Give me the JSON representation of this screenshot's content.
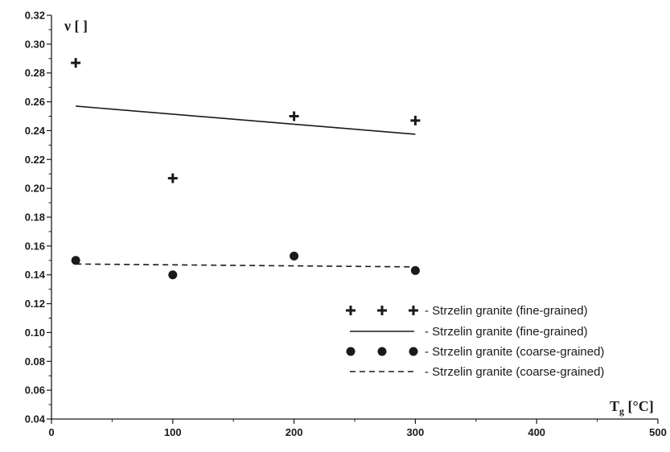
{
  "chart_data": {
    "type": "scatter",
    "xlabel": {
      "main": "T",
      "sub": "g",
      "unit": " [°C]"
    },
    "ylabel": {
      "main": "ν [ ]"
    },
    "xlim": [
      0,
      500
    ],
    "ylim": [
      0.04,
      0.32
    ],
    "x_ticks": [
      0,
      100,
      200,
      300,
      400,
      500
    ],
    "x_tick_labels": [
      "0",
      "100",
      "200",
      "300",
      "400",
      "500"
    ],
    "y_ticks": [
      0.04,
      0.06,
      0.08,
      0.1,
      0.12,
      0.14,
      0.16,
      0.18,
      0.2,
      0.22,
      0.24,
      0.26,
      0.28,
      0.3,
      0.32
    ],
    "y_tick_labels": [
      "0.04",
      "0.06",
      "0.08",
      "0.10",
      "0.12",
      "0.14",
      "0.16",
      "0.18",
      "0.20",
      "0.22",
      "0.24",
      "0.26",
      "0.28",
      "0.30",
      "0.32"
    ],
    "grid": false,
    "legend_position": "bottom-right",
    "series": [
      {
        "name": "- Strzelin granite (fine-grained)",
        "kind": "points",
        "marker": "plus",
        "x": [
          20,
          100,
          200,
          300
        ],
        "y": [
          0.287,
          0.207,
          0.25,
          0.247
        ]
      },
      {
        "name": "- Strzelin granite (fine-grained)",
        "kind": "line",
        "style": "solid",
        "x": [
          20,
          300
        ],
        "y": [
          0.257,
          0.2375
        ]
      },
      {
        "name": "- Strzelin granite (coarse-grained)",
        "kind": "points",
        "marker": "circle",
        "x": [
          20,
          100,
          200,
          300
        ],
        "y": [
          0.15,
          0.14,
          0.153,
          0.143
        ]
      },
      {
        "name": "- Strzelin granite (coarse-grained)",
        "kind": "line",
        "style": "dashed",
        "x": [
          20,
          300
        ],
        "y": [
          0.1475,
          0.1455
        ]
      }
    ],
    "colors": {
      "ink": "#1a1a1a",
      "background": "#ffffff"
    }
  }
}
